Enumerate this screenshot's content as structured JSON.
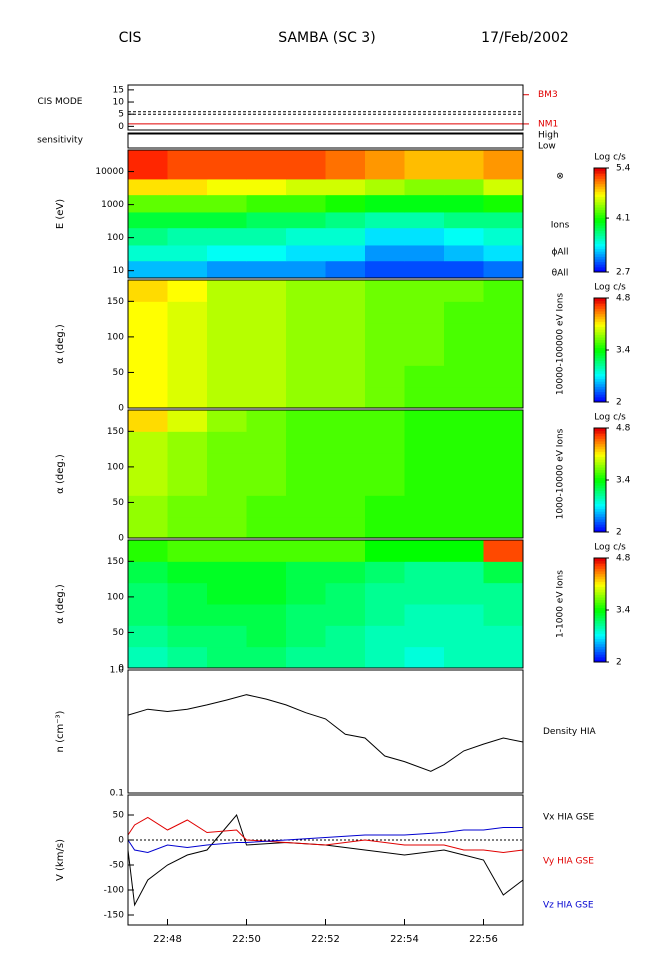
{
  "header": {
    "left": "CIS",
    "center": "SAMBA (SC 3)",
    "right": "17/Feb/2002"
  },
  "chart_data": [
    {
      "type": "mode",
      "ylabel": "CIS MODE",
      "ylim": [
        -1.5,
        17
      ],
      "yticks": [
        0,
        5,
        10,
        15
      ],
      "dashed_levels": [
        5,
        6
      ],
      "mode_value": 1,
      "color": "#e00000",
      "levels": [
        {
          "label": "BM3",
          "value": 13
        },
        {
          "label": "NM1",
          "value": 1
        }
      ]
    },
    {
      "type": "flag",
      "ylabel": "sensitivity",
      "levels": [
        "High",
        "Low"
      ]
    },
    {
      "type": "spectrogram",
      "ylabel": "E (eV)",
      "log": true,
      "ylim": [
        6,
        45000
      ],
      "yticks": [
        10,
        100,
        1000,
        10000
      ],
      "annotations": [
        "⊗",
        "Ions",
        "ϕAll",
        "θAll"
      ],
      "colorbar_label": "Log c/s",
      "clim": [
        2.7,
        5.4
      ],
      "cticks": [
        2.7,
        4.1,
        5.4
      ],
      "xbins": [
        "22:47",
        "22:48",
        "22:49",
        "22:50",
        "22:51",
        "22:52",
        "22:53",
        "22:54",
        "22:55",
        "22:56",
        "22:57"
      ],
      "ybins": [
        6,
        20,
        60,
        200,
        600,
        2000,
        6000,
        45000
      ],
      "z": [
        [
          3.2,
          3.2,
          3.1,
          3.1,
          3.1,
          3.0,
          2.9,
          2.9,
          2.9,
          3.0
        ],
        [
          3.5,
          3.5,
          3.4,
          3.4,
          3.3,
          3.3,
          3.1,
          3.1,
          3.2,
          3.3
        ],
        [
          3.7,
          3.6,
          3.6,
          3.6,
          3.5,
          3.5,
          3.3,
          3.3,
          3.4,
          3.5
        ],
        [
          3.9,
          3.9,
          3.9,
          3.8,
          3.8,
          3.7,
          3.6,
          3.6,
          3.7,
          3.7
        ],
        [
          4.3,
          4.3,
          4.3,
          4.2,
          4.2,
          4.1,
          4.0,
          4.0,
          4.0,
          4.1
        ],
        [
          4.8,
          4.8,
          4.7,
          4.7,
          4.6,
          4.6,
          4.5,
          4.4,
          4.4,
          4.6
        ],
        [
          5.3,
          5.2,
          5.2,
          5.2,
          5.2,
          5.1,
          5.0,
          4.9,
          4.9,
          5.0
        ]
      ]
    },
    {
      "type": "spectrogram",
      "ylabel": "α (deg.)",
      "ylim": [
        0,
        180
      ],
      "yticks": [
        0,
        50,
        100,
        150
      ],
      "side_label": "10000-100000 eV Ions",
      "colorbar_label": "Log c/s",
      "clim": [
        2.0,
        4.8
      ],
      "cticks": [
        2.0,
        3.4,
        4.8
      ],
      "xbins": [
        "22:47",
        "22:48",
        "22:49",
        "22:50",
        "22:51",
        "22:52",
        "22:53",
        "22:54",
        "22:55",
        "22:56",
        "22:57"
      ],
      "ybins": [
        0,
        30,
        60,
        90,
        120,
        150,
        180
      ],
      "z": [
        [
          4.1,
          4.0,
          3.9,
          3.9,
          3.8,
          3.8,
          3.7,
          3.6,
          3.6,
          3.6
        ],
        [
          4.1,
          4.0,
          3.9,
          3.9,
          3.8,
          3.8,
          3.7,
          3.6,
          3.6,
          3.6
        ],
        [
          4.1,
          4.0,
          3.9,
          3.9,
          3.8,
          3.8,
          3.7,
          3.7,
          3.6,
          3.6
        ],
        [
          4.1,
          4.0,
          3.9,
          3.9,
          3.8,
          3.8,
          3.7,
          3.7,
          3.6,
          3.6
        ],
        [
          4.1,
          4.0,
          3.9,
          3.9,
          3.8,
          3.8,
          3.7,
          3.7,
          3.6,
          3.6
        ],
        [
          4.2,
          4.1,
          3.9,
          3.9,
          3.8,
          3.8,
          3.7,
          3.7,
          3.7,
          3.6
        ]
      ]
    },
    {
      "type": "spectrogram",
      "ylabel": "α (deg.)",
      "ylim": [
        0,
        180
      ],
      "yticks": [
        0,
        50,
        100,
        150
      ],
      "side_label": "1000-10000 eV Ions",
      "colorbar_label": "Log c/s",
      "clim": [
        2.0,
        4.8
      ],
      "cticks": [
        2.0,
        3.4,
        4.8
      ],
      "xbins": [
        "22:47",
        "22:48",
        "22:49",
        "22:50",
        "22:51",
        "22:52",
        "22:53",
        "22:54",
        "22:55",
        "22:56",
        "22:57"
      ],
      "ybins": [
        0,
        30,
        60,
        90,
        120,
        150,
        180
      ],
      "z": [
        [
          3.8,
          3.7,
          3.7,
          3.6,
          3.6,
          3.6,
          3.5,
          3.5,
          3.5,
          3.5
        ],
        [
          3.8,
          3.7,
          3.7,
          3.6,
          3.6,
          3.6,
          3.5,
          3.5,
          3.5,
          3.5
        ],
        [
          3.9,
          3.8,
          3.7,
          3.7,
          3.6,
          3.6,
          3.6,
          3.5,
          3.5,
          3.5
        ],
        [
          3.9,
          3.8,
          3.7,
          3.7,
          3.6,
          3.6,
          3.6,
          3.5,
          3.5,
          3.5
        ],
        [
          3.9,
          3.8,
          3.7,
          3.7,
          3.6,
          3.6,
          3.6,
          3.5,
          3.5,
          3.5
        ],
        [
          4.2,
          4.0,
          3.8,
          3.7,
          3.6,
          3.6,
          3.6,
          3.5,
          3.5,
          3.5
        ]
      ]
    },
    {
      "type": "spectrogram",
      "ylabel": "α (deg.)",
      "ylim": [
        0,
        180
      ],
      "yticks": [
        0,
        50,
        100,
        150
      ],
      "side_label": "1-1000 eV Ions",
      "colorbar_label": "Log c/s",
      "clim": [
        2.0,
        4.8
      ],
      "cticks": [
        2.0,
        3.4,
        4.8
      ],
      "xbins": [
        "22:47",
        "22:48",
        "22:49",
        "22:50",
        "22:51",
        "22:52",
        "22:53",
        "22:54",
        "22:55",
        "22:56",
        "22:57"
      ],
      "ybins": [
        0,
        30,
        60,
        90,
        120,
        150,
        180
      ],
      "z": [
        [
          2.9,
          3.0,
          3.1,
          3.1,
          3.0,
          3.0,
          2.9,
          2.8,
          2.9,
          2.9
        ],
        [
          3.0,
          3.1,
          3.1,
          3.2,
          3.1,
          3.0,
          2.9,
          2.9,
          2.9,
          2.9
        ],
        [
          3.1,
          3.2,
          3.2,
          3.2,
          3.1,
          3.1,
          3.0,
          2.9,
          2.9,
          3.0
        ],
        [
          3.1,
          3.2,
          3.3,
          3.3,
          3.2,
          3.1,
          3.0,
          3.0,
          3.0,
          3.0
        ],
        [
          3.2,
          3.3,
          3.3,
          3.3,
          3.2,
          3.2,
          3.1,
          3.0,
          3.0,
          3.2
        ],
        [
          3.5,
          3.6,
          3.6,
          3.6,
          3.6,
          3.6,
          3.4,
          3.4,
          3.4,
          4.6
        ]
      ]
    },
    {
      "type": "line",
      "ylabel": "n (cm⁻³)",
      "log": true,
      "ylim": [
        0.1,
        1.0
      ],
      "yticks": [
        0.1,
        {
          "value": 1.0,
          "label": "1.0"
        }
      ],
      "xlim": [
        "22:47:00",
        "22:57:00"
      ],
      "x": [
        "22:47:00",
        "22:47:30",
        "22:48:00",
        "22:48:30",
        "22:49:00",
        "22:49:30",
        "22:50:00",
        "22:50:30",
        "22:51:00",
        "22:51:30",
        "22:52:00",
        "22:52:30",
        "22:53:00",
        "22:53:30",
        "22:54:00",
        "22:54:40",
        "22:55:00",
        "22:55:30",
        "22:56:00",
        "22:56:30",
        "22:57:00"
      ],
      "series": [
        {
          "name": "Density HIA",
          "color": "#000000",
          "values": [
            0.43,
            0.48,
            0.46,
            0.48,
            0.52,
            0.57,
            0.63,
            0.58,
            0.52,
            0.45,
            0.4,
            0.3,
            0.28,
            0.2,
            0.18,
            0.15,
            0.17,
            0.22,
            0.25,
            0.28,
            0.26
          ]
        }
      ]
    },
    {
      "type": "line",
      "ylabel": "V (km/s)",
      "ylim": [
        -170,
        90
      ],
      "yticks": [
        -150,
        -100,
        -50,
        0,
        50
      ],
      "zero_line": true,
      "xlim": [
        "22:47:00",
        "22:57:00"
      ],
      "xticks": [
        "22:48",
        "22:50",
        "22:52",
        "22:54",
        "22:56"
      ],
      "x": [
        "22:47:00",
        "22:47:10",
        "22:47:30",
        "22:48:00",
        "22:48:30",
        "22:49:00",
        "22:49:45",
        "22:50:00",
        "22:51:00",
        "22:52:00",
        "22:53:00",
        "22:54:00",
        "22:55:00",
        "22:55:30",
        "22:56:00",
        "22:56:30",
        "22:57:00"
      ],
      "series": [
        {
          "name": "Vx HIA GSE",
          "color": "#000000",
          "values": [
            -20,
            -130,
            -80,
            -50,
            -30,
            -20,
            50,
            -10,
            -5,
            -10,
            -20,
            -30,
            -20,
            -30,
            -40,
            -110,
            -80
          ]
        },
        {
          "name": "Vy HIA GSE",
          "color": "#e00000",
          "values": [
            10,
            30,
            45,
            20,
            40,
            15,
            20,
            0,
            -5,
            -10,
            0,
            -10,
            -10,
            -20,
            -20,
            -25,
            -20
          ]
        },
        {
          "name": "Vz HIA GSE",
          "color": "#0000d0",
          "values": [
            0,
            -20,
            -25,
            -10,
            -15,
            -10,
            -5,
            -5,
            0,
            5,
            10,
            10,
            15,
            20,
            20,
            25,
            25
          ]
        }
      ]
    }
  ]
}
